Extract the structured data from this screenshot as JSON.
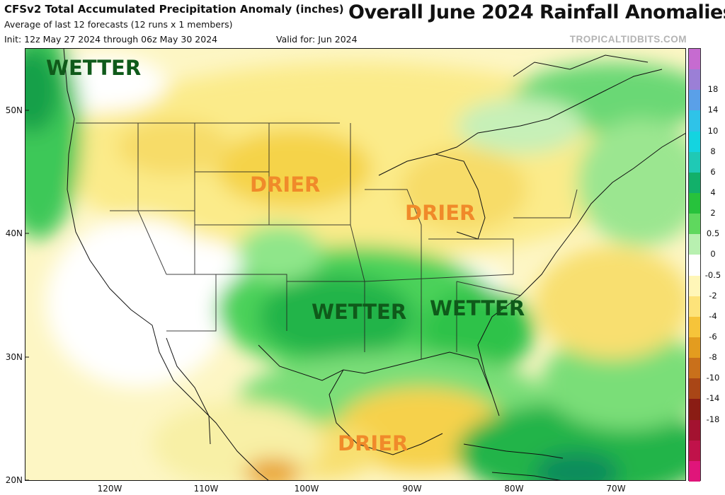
{
  "header": {
    "title": "CFSv2 Total Accumulated Precipitation Anomaly (inches)",
    "subtitle": "Average of last 12 forecasts (12 runs x 1 members)",
    "init": "Init: 12z May 27 2024 through 06z May 30 2024",
    "valid": "Valid for: Jun 2024",
    "headline": "Overall June 2024 Rainfall Anomalies",
    "credit": "TROPICALTIDBITS.COM"
  },
  "map": {
    "lat_labels": [
      "50N",
      "40N",
      "30N",
      "20N"
    ],
    "lon_labels": [
      "120W",
      "110W",
      "100W",
      "90W",
      "80W",
      "70W"
    ],
    "annotations": [
      {
        "text": "WETTER",
        "color": "#0f5a1a"
      },
      {
        "text": "DRIER",
        "color": "#f08a2a"
      },
      {
        "text": "DRIER",
        "color": "#f08a2a"
      },
      {
        "text": "WETTER",
        "color": "#0f5a1a"
      },
      {
        "text": "WETTER",
        "color": "#0f5a1a"
      },
      {
        "text": "DRIER",
        "color": "#f08a2a"
      }
    ]
  },
  "colorbar": {
    "labels": [
      "18",
      "14",
      "10",
      "8",
      "6",
      "4",
      "2",
      "0.5",
      "0",
      "-0.5",
      "-2",
      "-4",
      "-6",
      "-8",
      "-10",
      "-14",
      "-18"
    ],
    "colors": [
      "#c66bd0",
      "#9b7fd6",
      "#5aa0e8",
      "#2fc3e8",
      "#14d4e0",
      "#1fc9b5",
      "#12b06a",
      "#27c23c",
      "#5fd85e",
      "#b8f0b0",
      "#ffffff",
      "#fff6b8",
      "#fde37a",
      "#f6c43a",
      "#e39c1f",
      "#c9701b",
      "#a94616",
      "#8a1c14",
      "#a31230",
      "#c0124a",
      "#e0157a"
    ]
  }
}
